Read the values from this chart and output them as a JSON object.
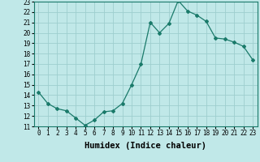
{
  "x": [
    0,
    1,
    2,
    3,
    4,
    5,
    6,
    7,
    8,
    9,
    10,
    11,
    12,
    13,
    14,
    15,
    16,
    17,
    18,
    19,
    20,
    21,
    22,
    23
  ],
  "y": [
    14.3,
    13.2,
    12.7,
    12.5,
    11.8,
    11.1,
    11.6,
    12.4,
    12.5,
    13.2,
    15.0,
    17.0,
    21.0,
    20.0,
    20.9,
    23.1,
    22.1,
    21.7,
    21.1,
    19.5,
    19.4,
    19.1,
    18.7,
    17.4
  ],
  "line_color": "#1a7a6a",
  "marker": "D",
  "marker_size": 2.0,
  "bg_color": "#c0e8e8",
  "grid_color": "#9ecece",
  "xlabel": "Humidex (Indice chaleur)",
  "xlim": [
    -0.5,
    23.5
  ],
  "ylim": [
    11,
    23
  ],
  "yticks": [
    11,
    12,
    13,
    14,
    15,
    16,
    17,
    18,
    19,
    20,
    21,
    22,
    23
  ],
  "xticks": [
    0,
    1,
    2,
    3,
    4,
    5,
    6,
    7,
    8,
    9,
    10,
    11,
    12,
    13,
    14,
    15,
    16,
    17,
    18,
    19,
    20,
    21,
    22,
    23
  ],
  "tick_fontsize": 5.5,
  "xlabel_fontsize": 7.5
}
